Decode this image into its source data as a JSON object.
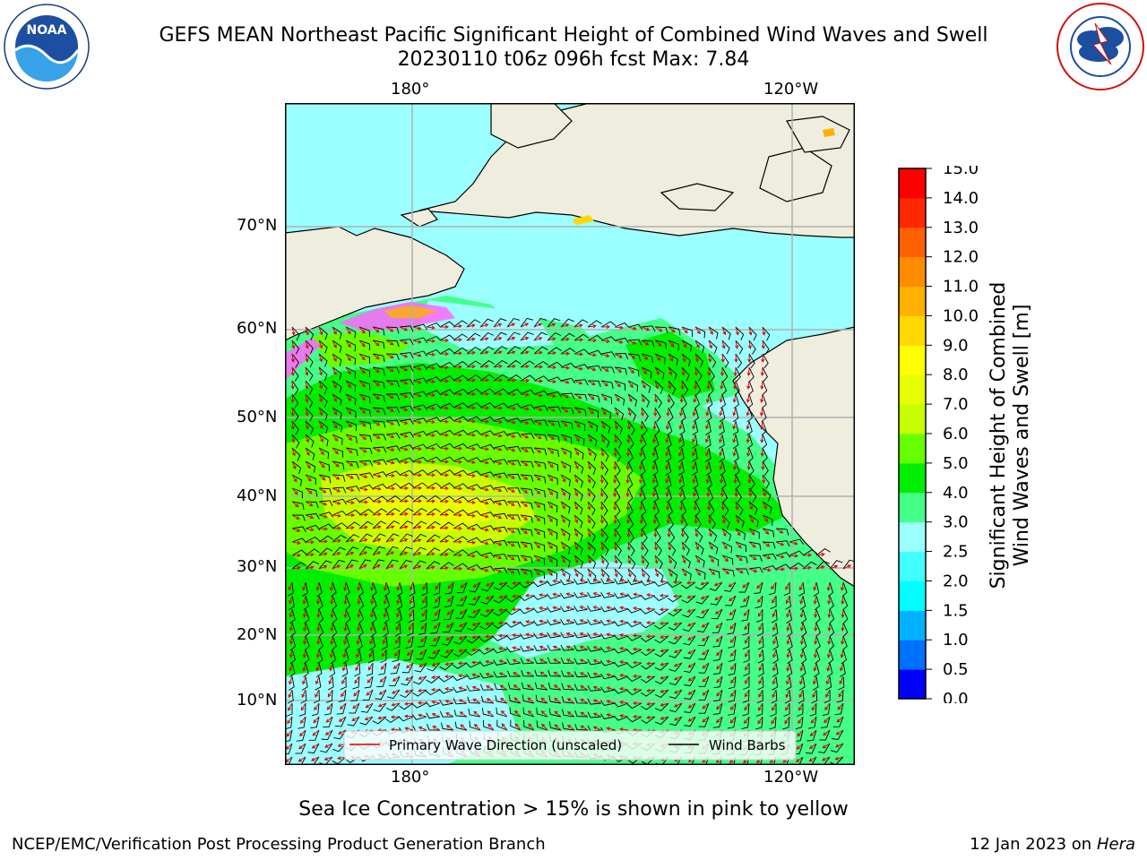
{
  "title": {
    "line1": "GEFS MEAN Northeast Pacific Significant Height of Combined Wind Waves and Swell",
    "line2": "20230110 t06z 096h fcst   Max: 7.84"
  },
  "logos": {
    "noaa": {
      "text": "NOAA",
      "ring_text": "NATIONAL OCEANIC AND ATMOSPHERIC ADMINISTRATION · U.S. DEPARTMENT OF COMMERCE"
    },
    "nws": {
      "ring_text": "NATIONAL WEATHER SERVICE"
    }
  },
  "map": {
    "lon_ticks_top": [
      "180°",
      "120°W"
    ],
    "lon_ticks_bottom": [
      "180°",
      "120°W"
    ],
    "lat_ticks": [
      "70°N",
      "60°N",
      "50°N",
      "40°N",
      "30°N",
      "20°N",
      "10°N"
    ],
    "legend": {
      "wave_direction": "Primary Wave Direction (unscaled)",
      "wind_barbs": "Wind Barbs"
    },
    "colors": {
      "land": "#efedde",
      "grid": "#b0b0b0",
      "wave_arrow": "#e00000",
      "barb": "#000000"
    }
  },
  "colorbar": {
    "label_line1": "Significant Height of Combined",
    "label_line2": "Wind Waves and Swell [m]",
    "ticks": [
      "0.0",
      "0.5",
      "1.0",
      "1.5",
      "2.0",
      "2.5",
      "3.0",
      "4.0",
      "5.0",
      "6.0",
      "7.0",
      "8.0",
      "9.0",
      "10.0",
      "11.0",
      "12.0",
      "13.0",
      "14.0",
      "15.0"
    ],
    "colors": [
      "#0000ff",
      "#0070ff",
      "#00b2ff",
      "#00ffff",
      "#40ffff",
      "#9cffff",
      "#44ff88",
      "#00ee00",
      "#66ff00",
      "#c8ff00",
      "#e6ff00",
      "#ffff00",
      "#ffd800",
      "#ffb000",
      "#ff8c00",
      "#ff6000",
      "#ff2800",
      "#ff0000"
    ]
  },
  "caption": "Sea Ice Concentration > 15% is shown in pink to yellow",
  "footer": {
    "left": "NCEP/EMC/Verification Post Processing Product Generation Branch",
    "right_date": "12 Jan 2023 on ",
    "right_host": "Hera"
  }
}
